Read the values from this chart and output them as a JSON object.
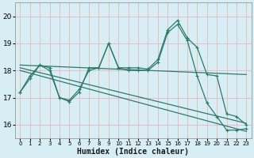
{
  "xlabel": "Humidex (Indice chaleur)",
  "ylabel": "",
  "xlim": [
    -0.5,
    23.5
  ],
  "ylim": [
    15.5,
    20.5
  ],
  "yticks": [
    16,
    17,
    18,
    19,
    20
  ],
  "xtick_labels": [
    "0",
    "1",
    "2",
    "3",
    "4",
    "5",
    "6",
    "7",
    "8",
    "9",
    "10",
    "11",
    "12",
    "13",
    "14",
    "15",
    "16",
    "17",
    "18",
    "19",
    "20",
    "21",
    "22",
    "23"
  ],
  "background_color": "#d7eff4",
  "grid_color": "#e8b8b8",
  "line_color": "#2b7a6a",
  "line1_y": [
    17.2,
    17.8,
    18.2,
    18.0,
    17.0,
    16.9,
    17.3,
    18.0,
    18.1,
    19.0,
    18.1,
    18.1,
    18.1,
    18.05,
    18.4,
    19.5,
    19.85,
    19.2,
    18.85,
    17.85,
    17.8,
    16.4,
    16.3,
    16.0
  ],
  "line2_y": [
    17.2,
    17.7,
    18.2,
    18.1,
    17.0,
    16.85,
    17.2,
    18.1,
    18.1,
    19.0,
    18.1,
    18.0,
    18.0,
    18.0,
    18.3,
    19.4,
    19.7,
    19.1,
    17.8,
    16.8,
    16.3,
    15.8,
    15.8,
    15.85
  ],
  "line3_x": [
    0,
    23
  ],
  "line3_y": [
    18.2,
    17.85
  ],
  "line4_x": [
    0,
    23
  ],
  "line4_y": [
    18.1,
    16.05
  ],
  "line5_x": [
    0,
    23
  ],
  "line5_y": [
    18.0,
    15.75
  ]
}
